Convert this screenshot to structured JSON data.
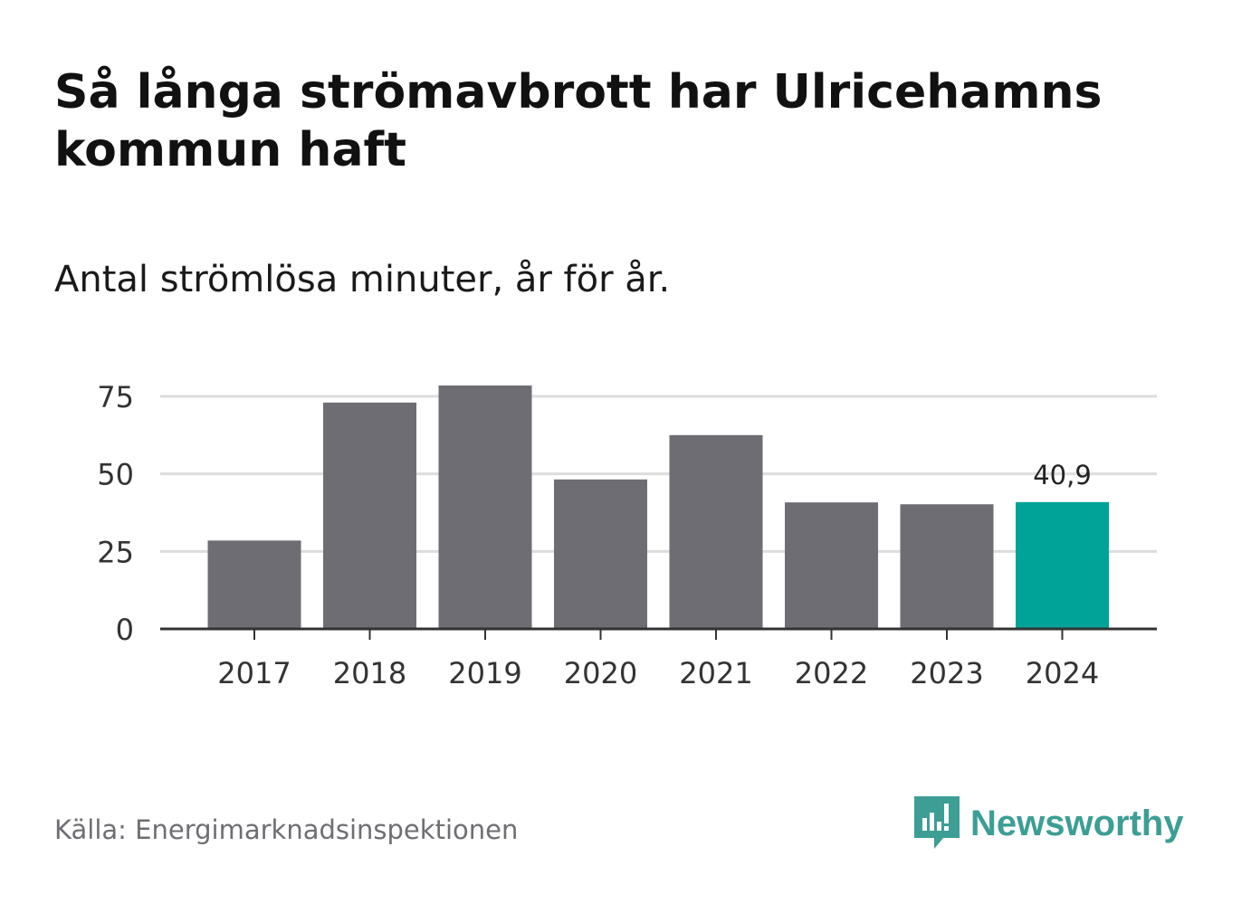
{
  "title": "Så långa strömavbrott har Ulricehamns kommun haft",
  "subtitle": "Antal strömlösa minuter, år för år.",
  "source": "Källa: Energimarknadsinspektionen",
  "brand": {
    "name": "Newsworthy",
    "icon": "newsworthy-logo-icon",
    "color": "#3c9e94"
  },
  "colors": {
    "bar": "#6e6d73",
    "highlight": "#00a398",
    "grid": "#dddddd",
    "axis": "#333333"
  },
  "chart_data": {
    "type": "bar",
    "categories": [
      "2017",
      "2018",
      "2019",
      "2020",
      "2021",
      "2022",
      "2023",
      "2024"
    ],
    "values": [
      28.5,
      73,
      78.5,
      48.2,
      62.5,
      40.8,
      40.2,
      40.9
    ],
    "highlight_index": 7,
    "data_labels": [
      {
        "index": 7,
        "text": "40,9"
      }
    ],
    "yticks": [
      0,
      25,
      50,
      75
    ],
    "ylim": [
      0,
      75
    ],
    "title": "Så långa strömavbrott har Ulricehamns kommun haft",
    "subtitle": "Antal strömlösa minuter, år för år.",
    "xlabel": "",
    "ylabel": "",
    "grid": true
  }
}
